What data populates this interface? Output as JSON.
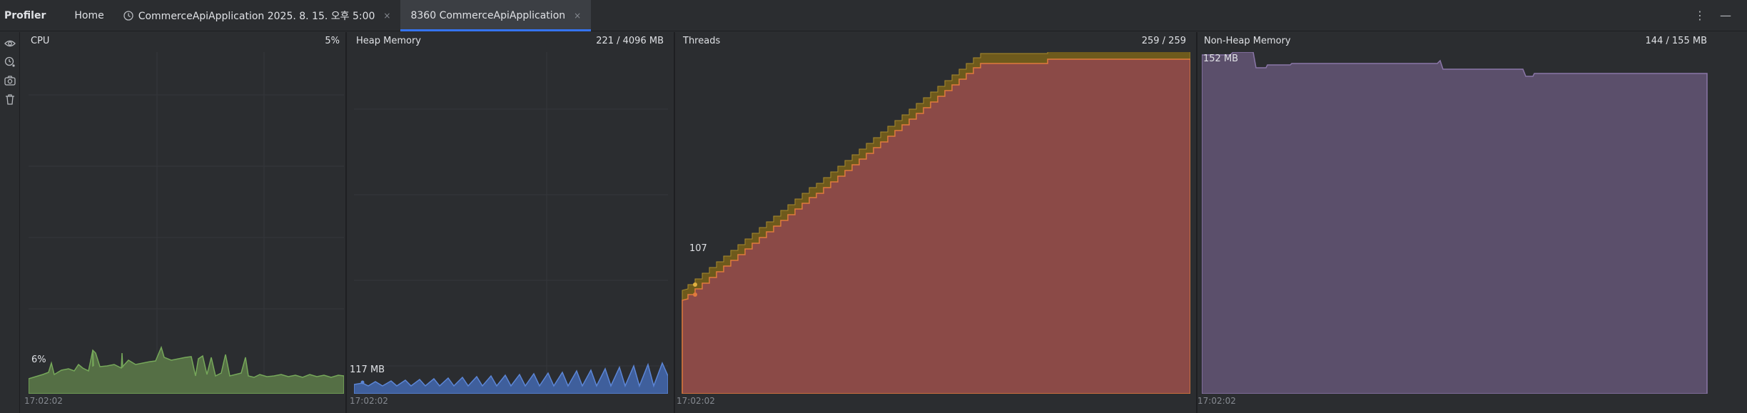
{
  "header": {
    "title": "Profiler",
    "tabs": [
      {
        "label": "Home"
      },
      {
        "label": "CommerceApiApplication 2025. 8. 15. 오후 5:00"
      },
      {
        "label": "8360 CommerceApiApplication"
      }
    ],
    "close_glyph": "×",
    "more_glyph": "⋮",
    "minimize_glyph": "—"
  },
  "panels": {
    "cpu": {
      "title": "CPU",
      "value": "5%",
      "label": "6%",
      "time": "17:02:02",
      "color": "#5f8a49"
    },
    "heap": {
      "title": "Heap Memory",
      "value": "221 / 4096 MB",
      "label": "117 MB",
      "time": "17:02:02",
      "color": "#4a6fb5"
    },
    "threads": {
      "title": "Threads",
      "value": "259 / 259",
      "label": "107",
      "time": "17:02:02",
      "color": "#8b4a47",
      "accent": "#6e5a1c"
    },
    "nonheap": {
      "title": "Non-Heap Memory",
      "value": "144 / 155 MB",
      "label": "152 MB",
      "time": "17:02:02",
      "color": "#5b4f6b"
    }
  }
}
